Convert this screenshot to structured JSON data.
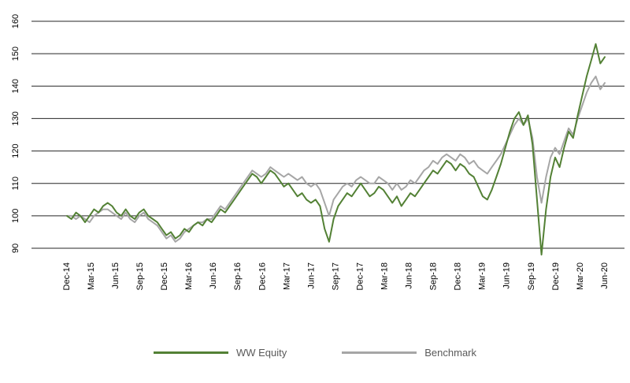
{
  "chart_data": {
    "type": "line",
    "title": "",
    "xlabel": "",
    "ylabel": "",
    "ylim": [
      90,
      160
    ],
    "yticks": [
      90,
      100,
      110,
      120,
      130,
      140,
      150,
      160
    ],
    "grid": true,
    "legend_position": "bottom",
    "x_labels": [
      "Dec-14",
      "Mar-15",
      "Jun-15",
      "Sep-15",
      "Dec-15",
      "Mar-16",
      "Jun-16",
      "Sep-16",
      "Dec-16",
      "Mar-17",
      "Jun-17",
      "Sep-17",
      "Dec-17",
      "Mar-18",
      "Jun-18",
      "Sep-18",
      "Dec-18",
      "Mar-19",
      "Jun-19",
      "Sep-19",
      "Dec-19",
      "Mar-20",
      "Jun-20"
    ],
    "series": [
      {
        "name": "WW Equity",
        "color": "#538135",
        "values": [
          100,
          99,
          101,
          100,
          98,
          100,
          102,
          101,
          103,
          104,
          103,
          101,
          100,
          102,
          100,
          99,
          101,
          102,
          100,
          99,
          98,
          96,
          94,
          95,
          93,
          94,
          96,
          95,
          97,
          98,
          97,
          99,
          98,
          100,
          102,
          101,
          103,
          105,
          107,
          109,
          111,
          113,
          112,
          110,
          112,
          114,
          113,
          111,
          109,
          110,
          108,
          106,
          107,
          105,
          104,
          105,
          103,
          96,
          92,
          99,
          103,
          105,
          107,
          106,
          108,
          110,
          108,
          106,
          107,
          109,
          108,
          106,
          104,
          106,
          103,
          105,
          107,
          106,
          108,
          110,
          112,
          114,
          113,
          115,
          117,
          116,
          114,
          116,
          115,
          113,
          112,
          109,
          106,
          105,
          108,
          112,
          116,
          121,
          126,
          130,
          132,
          128,
          131,
          122,
          105,
          88,
          102,
          112,
          118,
          115,
          121,
          126,
          124,
          131,
          137,
          143,
          148,
          153,
          147,
          149
        ]
      },
      {
        "name": "Benchmark",
        "color": "#a6a6a6",
        "values": [
          100,
          100,
          99,
          100,
          99,
          98,
          100,
          101,
          102,
          102,
          101,
          100,
          99,
          101,
          99,
          98,
          100,
          101,
          99,
          98,
          97,
          95,
          93,
          94,
          92,
          93,
          95,
          96,
          97,
          98,
          98,
          99,
          99,
          101,
          103,
          102,
          104,
          106,
          108,
          110,
          112,
          114,
          113,
          112,
          113,
          115,
          114,
          113,
          112,
          113,
          112,
          111,
          112,
          110,
          109,
          110,
          108,
          104,
          100,
          105,
          107,
          109,
          110,
          109,
          111,
          112,
          111,
          110,
          110,
          112,
          111,
          110,
          108,
          110,
          108,
          109,
          111,
          110,
          112,
          114,
          115,
          117,
          116,
          118,
          119,
          118,
          117,
          119,
          118,
          116,
          117,
          115,
          114,
          113,
          115,
          117,
          119,
          122,
          125,
          128,
          130,
          128,
          130,
          124,
          112,
          104,
          112,
          118,
          121,
          119,
          123,
          127,
          125,
          130,
          134,
          138,
          141,
          143,
          139,
          141
        ]
      }
    ]
  }
}
